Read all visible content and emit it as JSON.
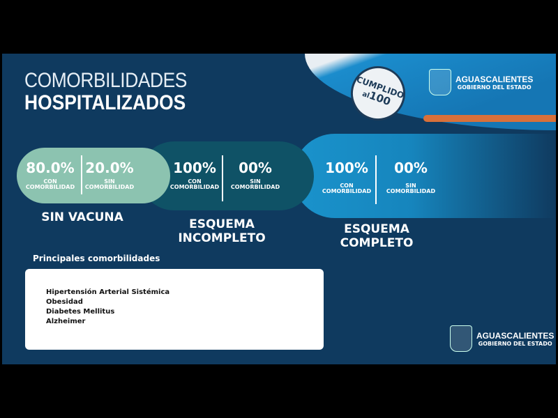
{
  "title": {
    "line1": "COMORBILIDADES",
    "line2": "HOSPITALIZADOS"
  },
  "badge": {
    "text": "CUMPLIDO",
    "number": "100",
    "prefix": "al"
  },
  "logo": {
    "name": "AGUASCALIENTES",
    "subtitle": "GOBIERNO DEL ESTADO"
  },
  "groups": [
    {
      "label": "SIN VACUNA",
      "con": {
        "value": "80.0%",
        "label1": "CON",
        "label2": "COMORBILIDAD"
      },
      "sin": {
        "value": "20.0%",
        "label1": "SIN",
        "label2": "COMORBILIDAD"
      },
      "color": "#8cc3b0"
    },
    {
      "label": "ESQUEMA INCOMPLETO",
      "con": {
        "value": "100%",
        "label1": "CON",
        "label2": "COMORBILIDAD"
      },
      "sin": {
        "value": "00%",
        "label1": "SIN",
        "label2": "COMORBILIDAD"
      },
      "color": "#0f5266"
    },
    {
      "label": "ESQUEMA COMPLETO",
      "con": {
        "value": "100%",
        "label1": "CON",
        "label2": "COMORBILIDAD"
      },
      "sin": {
        "value": "00%",
        "label1": "SIN",
        "label2": "COMORBILIDAD"
      },
      "color": "#1a93cc"
    }
  ],
  "comorbidities": {
    "heading": "Principales comorbilidades",
    "items": [
      "Hipertensión Arterial Sistémica",
      "Obesidad",
      "Diabetes Mellitus",
      "Alzheimer"
    ]
  }
}
